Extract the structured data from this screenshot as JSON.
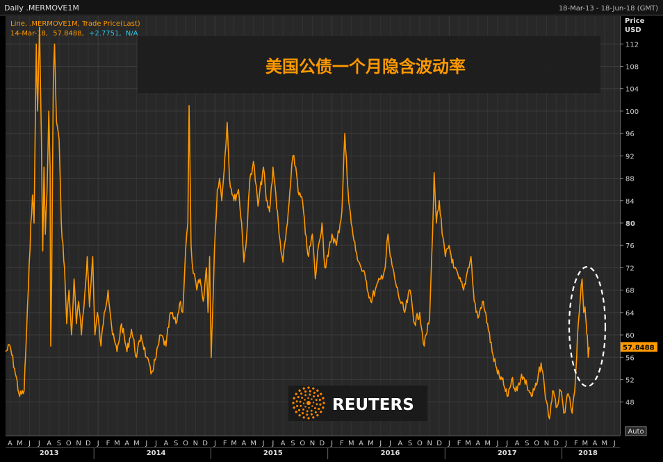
{
  "header": {
    "chart_label": "Daily .MERMOVE1M",
    "date_range": "18-Mar-13 - 18-Jun-18 (GMT)",
    "legend_line": "Line, .MERMOVE1M, Trade Price(Last)",
    "last_date": "14-Mar-18,",
    "last_value": "57.8488,",
    "last_change": "+2.7751,",
    "last_status": "N/A"
  },
  "axis": {
    "price_label": "Price",
    "currency_label": "USD",
    "auto_label": "Auto",
    "current_value_label": "57.8488"
  },
  "title_box": {
    "text": "美国公债一个月隐含波动率"
  },
  "logo": {
    "text": "REUTERS"
  },
  "colors": {
    "background": "#000000",
    "plot_background": "#282828",
    "grid": "#3c3c3c",
    "line": "#ff9900",
    "legend_text": "#ff9900",
    "change_text": "#33ccee",
    "axis_text": "#cccccc",
    "title_box_bg": "#1d1d1d",
    "title_text": "#ff9900"
  },
  "chart_data": {
    "type": "line",
    "title": "美国公债一个月隐含波动率",
    "ylabel": "Price USD",
    "xlabel": "",
    "ylim": [
      42,
      117
    ],
    "xlim": [
      "2013-03-18",
      "2018-06-18"
    ],
    "yticks": [
      48,
      52,
      56,
      60,
      64,
      68,
      72,
      76,
      80,
      84,
      88,
      92,
      96,
      100,
      104,
      108,
      112
    ],
    "month_ticks": [
      {
        "label": "A",
        "date": "2013-04-01"
      },
      {
        "label": "M",
        "date": "2013-05-01"
      },
      {
        "label": "J",
        "date": "2013-06-01"
      },
      {
        "label": "J",
        "date": "2013-07-01"
      },
      {
        "label": "A",
        "date": "2013-08-01"
      },
      {
        "label": "S",
        "date": "2013-09-01"
      },
      {
        "label": "O",
        "date": "2013-10-01"
      },
      {
        "label": "N",
        "date": "2013-11-01"
      },
      {
        "label": "D",
        "date": "2013-12-01"
      },
      {
        "label": "J",
        "date": "2014-01-01"
      },
      {
        "label": "F",
        "date": "2014-02-01"
      },
      {
        "label": "M",
        "date": "2014-03-01"
      },
      {
        "label": "A",
        "date": "2014-04-01"
      },
      {
        "label": "M",
        "date": "2014-05-01"
      },
      {
        "label": "J",
        "date": "2014-06-01"
      },
      {
        "label": "J",
        "date": "2014-07-01"
      },
      {
        "label": "A",
        "date": "2014-08-01"
      },
      {
        "label": "S",
        "date": "2014-09-01"
      },
      {
        "label": "O",
        "date": "2014-10-01"
      },
      {
        "label": "N",
        "date": "2014-11-01"
      },
      {
        "label": "D",
        "date": "2014-12-01"
      },
      {
        "label": "J",
        "date": "2015-01-01"
      },
      {
        "label": "F",
        "date": "2015-02-01"
      },
      {
        "label": "M",
        "date": "2015-03-01"
      },
      {
        "label": "A",
        "date": "2015-04-01"
      },
      {
        "label": "M",
        "date": "2015-05-01"
      },
      {
        "label": "J",
        "date": "2015-06-01"
      },
      {
        "label": "J",
        "date": "2015-07-01"
      },
      {
        "label": "A",
        "date": "2015-08-01"
      },
      {
        "label": "S",
        "date": "2015-09-01"
      },
      {
        "label": "O",
        "date": "2015-10-01"
      },
      {
        "label": "N",
        "date": "2015-11-01"
      },
      {
        "label": "D",
        "date": "2015-12-01"
      },
      {
        "label": "J",
        "date": "2016-01-01"
      },
      {
        "label": "F",
        "date": "2016-02-01"
      },
      {
        "label": "M",
        "date": "2016-03-01"
      },
      {
        "label": "A",
        "date": "2016-04-01"
      },
      {
        "label": "M",
        "date": "2016-05-01"
      },
      {
        "label": "J",
        "date": "2016-06-01"
      },
      {
        "label": "J",
        "date": "2016-07-01"
      },
      {
        "label": "A",
        "date": "2016-08-01"
      },
      {
        "label": "S",
        "date": "2016-09-01"
      },
      {
        "label": "O",
        "date": "2016-10-01"
      },
      {
        "label": "N",
        "date": "2016-11-01"
      },
      {
        "label": "D",
        "date": "2016-12-01"
      },
      {
        "label": "J",
        "date": "2017-01-01"
      },
      {
        "label": "F",
        "date": "2017-02-01"
      },
      {
        "label": "M",
        "date": "2017-03-01"
      },
      {
        "label": "A",
        "date": "2017-04-01"
      },
      {
        "label": "M",
        "date": "2017-05-01"
      },
      {
        "label": "J",
        "date": "2017-06-01"
      },
      {
        "label": "J",
        "date": "2017-07-01"
      },
      {
        "label": "A",
        "date": "2017-08-01"
      },
      {
        "label": "S",
        "date": "2017-09-01"
      },
      {
        "label": "O",
        "date": "2017-10-01"
      },
      {
        "label": "N",
        "date": "2017-11-01"
      },
      {
        "label": "D",
        "date": "2017-12-01"
      },
      {
        "label": "J",
        "date": "2018-01-01"
      },
      {
        "label": "F",
        "date": "2018-02-01"
      },
      {
        "label": "M",
        "date": "2018-03-01"
      },
      {
        "label": "A",
        "date": "2018-04-01"
      },
      {
        "label": "M",
        "date": "2018-05-01"
      },
      {
        "label": "J",
        "date": "2018-06-01"
      }
    ],
    "year_labels": [
      {
        "label": "2013",
        "center": "2013-08-01"
      },
      {
        "label": "2014",
        "center": "2014-07-01"
      },
      {
        "label": "2015",
        "center": "2015-07-01"
      },
      {
        "label": "2016",
        "center": "2016-07-01"
      },
      {
        "label": "2017",
        "center": "2017-07-01"
      },
      {
        "label": "2018",
        "center": "2018-03-10"
      }
    ],
    "series": [
      {
        "values": [
          [
            "2013-03-18",
            57
          ],
          [
            "2013-04-01",
            58
          ],
          [
            "2013-04-15",
            54
          ],
          [
            "2013-05-01",
            49
          ],
          [
            "2013-05-15",
            50
          ],
          [
            "2013-05-28",
            68
          ],
          [
            "2013-06-05",
            80
          ],
          [
            "2013-06-10",
            85
          ],
          [
            "2013-06-15",
            80
          ],
          [
            "2013-06-22",
            112
          ],
          [
            "2013-06-26",
            100
          ],
          [
            "2013-07-02",
            115
          ],
          [
            "2013-07-08",
            95
          ],
          [
            "2013-07-12",
            75
          ],
          [
            "2013-07-16",
            90
          ],
          [
            "2013-07-20",
            78
          ],
          [
            "2013-07-25",
            85
          ],
          [
            "2013-07-31",
            100
          ],
          [
            "2013-08-04",
            90
          ],
          [
            "2013-08-06",
            58
          ],
          [
            "2013-08-09",
            70
          ],
          [
            "2013-08-14",
            105
          ],
          [
            "2013-08-18",
            112
          ],
          [
            "2013-08-24",
            98
          ],
          [
            "2013-09-01",
            95
          ],
          [
            "2013-09-08",
            80
          ],
          [
            "2013-09-18",
            72
          ],
          [
            "2013-09-25",
            62
          ],
          [
            "2013-10-02",
            68
          ],
          [
            "2013-10-10",
            60
          ],
          [
            "2013-10-18",
            70
          ],
          [
            "2013-10-25",
            62
          ],
          [
            "2013-11-01",
            66
          ],
          [
            "2013-11-10",
            60
          ],
          [
            "2013-11-20",
            67
          ],
          [
            "2013-11-28",
            74
          ],
          [
            "2013-12-05",
            65
          ],
          [
            "2013-12-15",
            74
          ],
          [
            "2013-12-22",
            60
          ],
          [
            "2013-12-30",
            64
          ],
          [
            "2014-01-10",
            58
          ],
          [
            "2014-01-20",
            64
          ],
          [
            "2014-02-01",
            68
          ],
          [
            "2014-02-15",
            60
          ],
          [
            "2014-03-01",
            57
          ],
          [
            "2014-03-15",
            62
          ],
          [
            "2014-04-01",
            57
          ],
          [
            "2014-04-15",
            61
          ],
          [
            "2014-05-01",
            56
          ],
          [
            "2014-05-15",
            60
          ],
          [
            "2014-06-01",
            56
          ],
          [
            "2014-06-15",
            53
          ],
          [
            "2014-07-01",
            56
          ],
          [
            "2014-07-15",
            60
          ],
          [
            "2014-08-01",
            58
          ],
          [
            "2014-08-15",
            64
          ],
          [
            "2014-09-01",
            62
          ],
          [
            "2014-09-15",
            66
          ],
          [
            "2014-09-22",
            64
          ],
          [
            "2014-10-01",
            75
          ],
          [
            "2014-10-08",
            80
          ],
          [
            "2014-10-12",
            101
          ],
          [
            "2014-10-18",
            76
          ],
          [
            "2014-10-25",
            71
          ],
          [
            "2014-11-05",
            68
          ],
          [
            "2014-11-15",
            70
          ],
          [
            "2014-11-25",
            66
          ],
          [
            "2014-12-05",
            72
          ],
          [
            "2014-12-10",
            64
          ],
          [
            "2014-12-15",
            74
          ],
          [
            "2014-12-20",
            56
          ],
          [
            "2014-12-30",
            75
          ],
          [
            "2015-01-08",
            86
          ],
          [
            "2015-01-15",
            88
          ],
          [
            "2015-01-22",
            84
          ],
          [
            "2015-02-01",
            92
          ],
          [
            "2015-02-08",
            98
          ],
          [
            "2015-02-15",
            88
          ],
          [
            "2015-03-01",
            84
          ],
          [
            "2015-03-15",
            86
          ],
          [
            "2015-03-25",
            80
          ],
          [
            "2015-04-01",
            73
          ],
          [
            "2015-04-10",
            78
          ],
          [
            "2015-04-20",
            88
          ],
          [
            "2015-05-01",
            91
          ],
          [
            "2015-05-15",
            83
          ],
          [
            "2015-06-01",
            90
          ],
          [
            "2015-06-10",
            84
          ],
          [
            "2015-06-20",
            82
          ],
          [
            "2015-07-01",
            90
          ],
          [
            "2015-07-10",
            85
          ],
          [
            "2015-07-20",
            78
          ],
          [
            "2015-08-01",
            73
          ],
          [
            "2015-08-15",
            80
          ],
          [
            "2015-08-25",
            87
          ],
          [
            "2015-09-01",
            92
          ],
          [
            "2015-09-10",
            90
          ],
          [
            "2015-09-20",
            85
          ],
          [
            "2015-10-01",
            84
          ],
          [
            "2015-10-10",
            78
          ],
          [
            "2015-10-20",
            74
          ],
          [
            "2015-11-01",
            78
          ],
          [
            "2015-11-10",
            70
          ],
          [
            "2015-11-20",
            76
          ],
          [
            "2015-12-01",
            80
          ],
          [
            "2015-12-10",
            72
          ],
          [
            "2015-12-20",
            74
          ],
          [
            "2016-01-01",
            78
          ],
          [
            "2016-01-15",
            76
          ],
          [
            "2016-02-01",
            82
          ],
          [
            "2016-02-10",
            96
          ],
          [
            "2016-02-20",
            86
          ],
          [
            "2016-03-01",
            80
          ],
          [
            "2016-03-15",
            75
          ],
          [
            "2016-04-01",
            72
          ],
          [
            "2016-04-15",
            70
          ],
          [
            "2016-05-01",
            66
          ],
          [
            "2016-05-15",
            68
          ],
          [
            "2016-06-01",
            70
          ],
          [
            "2016-06-15",
            72
          ],
          [
            "2016-06-24",
            78
          ],
          [
            "2016-07-01",
            74
          ],
          [
            "2016-07-15",
            70
          ],
          [
            "2016-08-01",
            66
          ],
          [
            "2016-08-15",
            64
          ],
          [
            "2016-09-01",
            68
          ],
          [
            "2016-09-15",
            62
          ],
          [
            "2016-10-01",
            64
          ],
          [
            "2016-10-15",
            58
          ],
          [
            "2016-11-01",
            63
          ],
          [
            "2016-11-10",
            78
          ],
          [
            "2016-11-15",
            89
          ],
          [
            "2016-11-22",
            80
          ],
          [
            "2016-12-01",
            84
          ],
          [
            "2016-12-10",
            78
          ],
          [
            "2016-12-20",
            74
          ],
          [
            "2017-01-01",
            76
          ],
          [
            "2017-01-15",
            72
          ],
          [
            "2017-02-01",
            70
          ],
          [
            "2017-02-15",
            68
          ],
          [
            "2017-03-01",
            72
          ],
          [
            "2017-03-10",
            74
          ],
          [
            "2017-03-20",
            66
          ],
          [
            "2017-04-01",
            63
          ],
          [
            "2017-04-15",
            66
          ],
          [
            "2017-05-01",
            62
          ],
          [
            "2017-05-15",
            57
          ],
          [
            "2017-06-01",
            53
          ],
          [
            "2017-06-15",
            52
          ],
          [
            "2017-07-01",
            49
          ],
          [
            "2017-07-15",
            52
          ],
          [
            "2017-08-01",
            50
          ],
          [
            "2017-08-15",
            53
          ],
          [
            "2017-09-01",
            51
          ],
          [
            "2017-09-15",
            49
          ],
          [
            "2017-10-01",
            51
          ],
          [
            "2017-10-15",
            55
          ],
          [
            "2017-10-25",
            51
          ],
          [
            "2017-11-01",
            48
          ],
          [
            "2017-11-10",
            45
          ],
          [
            "2017-11-20",
            50
          ],
          [
            "2017-12-01",
            47
          ],
          [
            "2017-12-15",
            50
          ],
          [
            "2017-12-25",
            46
          ],
          [
            "2018-01-01",
            48
          ],
          [
            "2018-01-10",
            49
          ],
          [
            "2018-01-20",
            46
          ],
          [
            "2018-01-28",
            50
          ],
          [
            "2018-02-03",
            56
          ],
          [
            "2018-02-08",
            62
          ],
          [
            "2018-02-14",
            66
          ],
          [
            "2018-02-20",
            70
          ],
          [
            "2018-02-25",
            64
          ],
          [
            "2018-03-01",
            65
          ],
          [
            "2018-03-05",
            62
          ],
          [
            "2018-03-08",
            60
          ],
          [
            "2018-03-11",
            56
          ],
          [
            "2018-03-14",
            57.8488
          ]
        ]
      }
    ]
  }
}
